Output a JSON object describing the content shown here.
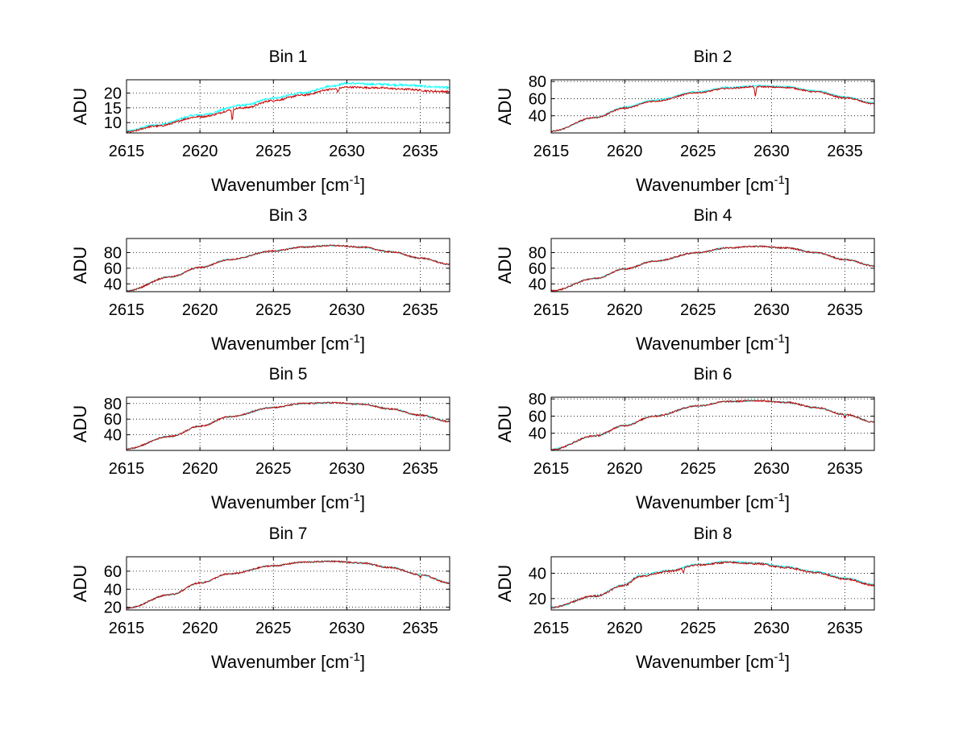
{
  "chart_data": [
    {
      "type": "line",
      "title": "Bin 1",
      "xlabel": "Wavenumber [cm",
      "xlabel_sup": "-1",
      "xlabel_end": "]",
      "ylabel": "ADU",
      "xlim": [
        2615,
        2637
      ],
      "ylim": [
        6.5,
        24.5
      ],
      "xticks": [
        2615,
        2620,
        2625,
        2630,
        2635
      ],
      "yticks": [
        10,
        15,
        20
      ],
      "grid": true,
      "series": [
        {
          "name": "cyan",
          "color": "#00ffff",
          "x": [
            2615,
            2617,
            2620,
            2623,
            2625,
            2627,
            2629,
            2630,
            2632,
            2634,
            2636,
            2637
          ],
          "values": [
            7.1,
            9.2,
            12.6,
            15.9,
            18.3,
            20.0,
            22.4,
            23.3,
            23.0,
            22.7,
            22.1,
            21.8
          ],
          "noise": 0.35,
          "dips": []
        },
        {
          "name": "red",
          "color": "#cc0000",
          "x": [
            2615,
            2617,
            2620,
            2623,
            2625,
            2627,
            2629,
            2630,
            2632,
            2634,
            2636,
            2637
          ],
          "values": [
            6.8,
            8.8,
            12.0,
            15.0,
            17.5,
            19.3,
            21.3,
            22.0,
            21.8,
            21.3,
            20.6,
            20.5
          ],
          "noise": 0.3,
          "dips": [
            {
              "x": 2622.2,
              "depth": 3.5
            },
            {
              "x": 2629.4,
              "depth": 1.2
            }
          ]
        }
      ]
    },
    {
      "type": "line",
      "title": "Bin 2",
      "xlabel": "Wavenumber [cm",
      "xlabel_sup": "-1",
      "xlabel_end": "]",
      "ylabel": "ADU",
      "xlim": [
        2615,
        2637
      ],
      "ylim": [
        20,
        82
      ],
      "xticks": [
        2615,
        2620,
        2625,
        2630,
        2635
      ],
      "yticks": [
        40,
        60,
        80
      ],
      "grid": true,
      "series": [
        {
          "name": "cyan",
          "color": "#00ffff",
          "x": [
            2615,
            2618,
            2620,
            2622,
            2625,
            2627,
            2629,
            2631,
            2633,
            2635,
            2637
          ],
          "values": [
            22,
            38,
            50,
            58,
            68,
            73,
            75,
            74,
            69,
            62,
            55
          ],
          "noise": 0.8,
          "dips": []
        },
        {
          "name": "red",
          "color": "#cc0000",
          "x": [
            2615,
            2618,
            2620,
            2622,
            2625,
            2627,
            2629,
            2631,
            2633,
            2635,
            2637
          ],
          "values": [
            22,
            38,
            49,
            57,
            67,
            72,
            74,
            73,
            68,
            61,
            54
          ],
          "noise": 0.8,
          "dips": [
            {
              "x": 2628.9,
              "depth": 12
            }
          ]
        }
      ]
    },
    {
      "type": "line",
      "title": "Bin 3",
      "xlabel": "Wavenumber [cm",
      "xlabel_sup": "-1",
      "xlabel_end": "]",
      "ylabel": "ADU",
      "xlim": [
        2615,
        2637
      ],
      "ylim": [
        30,
        98
      ],
      "xticks": [
        2615,
        2620,
        2625,
        2630,
        2635
      ],
      "yticks": [
        40,
        60,
        80
      ],
      "grid": true,
      "series": [
        {
          "name": "cyan",
          "color": "#00ffff",
          "x": [
            2615,
            2618,
            2620,
            2622,
            2625,
            2627,
            2629,
            2631,
            2633,
            2635,
            2637
          ],
          "values": [
            31,
            49,
            61,
            71,
            82,
            87,
            89,
            87,
            81,
            73,
            65
          ],
          "noise": 0.9,
          "dips": []
        },
        {
          "name": "red",
          "color": "#cc0000",
          "x": [
            2615,
            2618,
            2620,
            2622,
            2625,
            2627,
            2629,
            2631,
            2633,
            2635,
            2637
          ],
          "values": [
            31,
            49,
            61,
            71,
            82,
            87,
            89,
            87,
            81,
            73,
            65
          ],
          "noise": 0.9,
          "dips": []
        }
      ]
    },
    {
      "type": "line",
      "title": "Bin 4",
      "xlabel": "Wavenumber [cm",
      "xlabel_sup": "-1",
      "xlabel_end": "]",
      "ylabel": "ADU",
      "xlim": [
        2615,
        2637
      ],
      "ylim": [
        30,
        98
      ],
      "xticks": [
        2615,
        2620,
        2625,
        2630,
        2635
      ],
      "yticks": [
        40,
        60,
        80
      ],
      "grid": true,
      "series": [
        {
          "name": "cyan",
          "color": "#00ffff",
          "x": [
            2615,
            2618,
            2620,
            2622,
            2625,
            2627,
            2629,
            2631,
            2633,
            2635,
            2637
          ],
          "values": [
            31,
            47,
            59,
            69,
            80,
            86,
            88,
            86,
            80,
            71,
            63
          ],
          "noise": 0.9,
          "dips": []
        },
        {
          "name": "red",
          "color": "#cc0000",
          "x": [
            2615,
            2618,
            2620,
            2622,
            2625,
            2627,
            2629,
            2631,
            2633,
            2635,
            2637
          ],
          "values": [
            31,
            47,
            59,
            69,
            80,
            86,
            88,
            86,
            80,
            71,
            63
          ],
          "noise": 0.9,
          "dips": []
        }
      ]
    },
    {
      "type": "line",
      "title": "Bin 5",
      "xlabel": "Wavenumber [cm",
      "xlabel_sup": "-1",
      "xlabel_end": "]",
      "ylabel": "ADU",
      "xlim": [
        2615,
        2637
      ],
      "ylim": [
        20,
        88
      ],
      "xticks": [
        2615,
        2620,
        2625,
        2630,
        2635
      ],
      "yticks": [
        40,
        60,
        80
      ],
      "grid": true,
      "series": [
        {
          "name": "cyan",
          "color": "#00ffff",
          "x": [
            2615,
            2618,
            2620,
            2622,
            2625,
            2627,
            2629,
            2631,
            2633,
            2635,
            2637
          ],
          "values": [
            22,
            38,
            51,
            63,
            75,
            80,
            81,
            79,
            73,
            65,
            57
          ],
          "noise": 0.9,
          "dips": []
        },
        {
          "name": "red",
          "color": "#cc0000",
          "x": [
            2615,
            2618,
            2620,
            2622,
            2625,
            2627,
            2629,
            2631,
            2633,
            2635,
            2637
          ],
          "values": [
            22,
            38,
            51,
            63,
            75,
            80,
            81,
            79,
            73,
            65,
            57
          ],
          "noise": 0.9,
          "dips": []
        }
      ]
    },
    {
      "type": "line",
      "title": "Bin 6",
      "xlabel": "Wavenumber [cm",
      "xlabel_sup": "-1",
      "xlabel_end": "]",
      "ylabel": "ADU",
      "xlim": [
        2615,
        2637
      ],
      "ylim": [
        20,
        82
      ],
      "xticks": [
        2615,
        2620,
        2625,
        2630,
        2635
      ],
      "yticks": [
        40,
        60,
        80
      ],
      "grid": true,
      "series": [
        {
          "name": "cyan",
          "color": "#00ffff",
          "x": [
            2615,
            2618,
            2620,
            2622,
            2625,
            2627,
            2629,
            2631,
            2633,
            2635,
            2637
          ],
          "values": [
            21,
            37,
            49,
            60,
            72,
            77,
            78,
            76,
            70,
            62,
            53
          ],
          "noise": 0.9,
          "dips": []
        },
        {
          "name": "red",
          "color": "#cc0000",
          "x": [
            2615,
            2618,
            2620,
            2622,
            2625,
            2627,
            2629,
            2631,
            2633,
            2635,
            2637
          ],
          "values": [
            21,
            37,
            49,
            60,
            72,
            77,
            78,
            76,
            70,
            62,
            53
          ],
          "noise": 0.9,
          "dips": [
            {
              "x": 2635.0,
              "depth": 5
            }
          ]
        }
      ]
    },
    {
      "type": "line",
      "title": "Bin 7",
      "xlabel": "Wavenumber [cm",
      "xlabel_sup": "-1",
      "xlabel_end": "]",
      "ylabel": "ADU",
      "xlim": [
        2615,
        2637
      ],
      "ylim": [
        17,
        76
      ],
      "xticks": [
        2615,
        2620,
        2625,
        2630,
        2635
      ],
      "yticks": [
        20,
        40,
        60
      ],
      "grid": true,
      "series": [
        {
          "name": "cyan",
          "color": "#00ffff",
          "x": [
            2615,
            2618,
            2620,
            2622,
            2625,
            2627,
            2629,
            2631,
            2633,
            2635,
            2637
          ],
          "values": [
            19,
            34,
            47,
            57,
            66,
            70,
            71,
            69,
            64,
            56,
            47
          ],
          "noise": 0.8,
          "dips": []
        },
        {
          "name": "red",
          "color": "#cc0000",
          "x": [
            2615,
            2618,
            2620,
            2622,
            2625,
            2627,
            2629,
            2631,
            2633,
            2635,
            2637
          ],
          "values": [
            19,
            34,
            47,
            57,
            66,
            70,
            71,
            69,
            64,
            56,
            47
          ],
          "noise": 0.8,
          "dips": [
            {
              "x": 2635.0,
              "depth": 4
            }
          ]
        }
      ]
    },
    {
      "type": "line",
      "title": "Bin 8",
      "xlabel": "Wavenumber [cm",
      "xlabel_sup": "-1",
      "xlabel_end": "]",
      "ylabel": "ADU",
      "xlim": [
        2615,
        2637
      ],
      "ylim": [
        11,
        53
      ],
      "xticks": [
        2615,
        2620,
        2625,
        2630,
        2635
      ],
      "yticks": [
        20,
        40
      ],
      "grid": true,
      "series": [
        {
          "name": "cyan",
          "color": "#00ffff",
          "x": [
            2615,
            2618,
            2620,
            2621,
            2623,
            2625,
            2627,
            2629,
            2631,
            2633,
            2635,
            2637
          ],
          "values": [
            13,
            22,
            31,
            38,
            42,
            47,
            49,
            48,
            45,
            41,
            36,
            31
          ],
          "noise": 0.7,
          "dips": []
        },
        {
          "name": "red",
          "color": "#cc0000",
          "x": [
            2615,
            2618,
            2620,
            2621,
            2623,
            2625,
            2627,
            2629,
            2631,
            2633,
            2635,
            2637
          ],
          "values": [
            13,
            22,
            30.5,
            37.5,
            41.5,
            46.5,
            48.5,
            47.5,
            44.5,
            40.5,
            35.5,
            30.5
          ],
          "noise": 0.7,
          "dips": [
            {
              "x": 2624.0,
              "depth": 4
            }
          ]
        }
      ]
    }
  ]
}
